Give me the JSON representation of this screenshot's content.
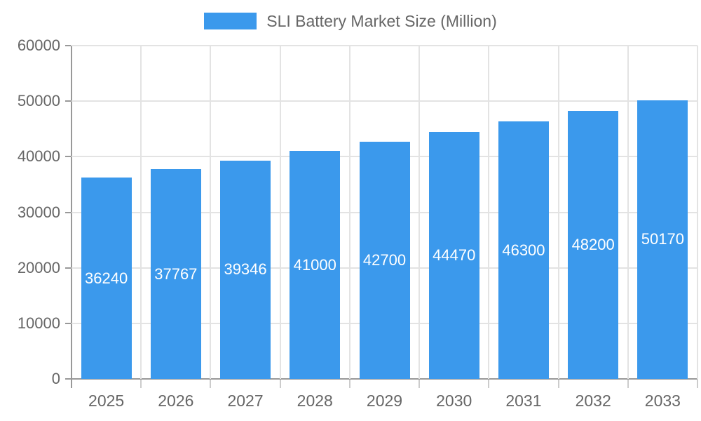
{
  "legend": {
    "label": "SLI Battery Market Size (Million)"
  },
  "chart_data": {
    "type": "bar",
    "title": "SLI Battery Market Size (Million)",
    "series_name": "SLI Battery Market Size (Million)",
    "categories": [
      "2025",
      "2026",
      "2027",
      "2028",
      "2029",
      "2030",
      "2031",
      "2032",
      "2033"
    ],
    "values": [
      36240,
      37767,
      39346,
      41000,
      42700,
      44470,
      46300,
      48200,
      50170
    ],
    "xlabel": "",
    "ylabel": "",
    "ylim": [
      0,
      60000
    ],
    "yticks": [
      0,
      10000,
      20000,
      30000,
      40000,
      50000,
      60000
    ],
    "grid": true,
    "legend_position": "top",
    "bar_color": "#3b99ec",
    "value_label_color": "#ffffff",
    "axis_line_color": "#999999",
    "grid_color": "#e3e3e3",
    "text_color": "#666666"
  }
}
